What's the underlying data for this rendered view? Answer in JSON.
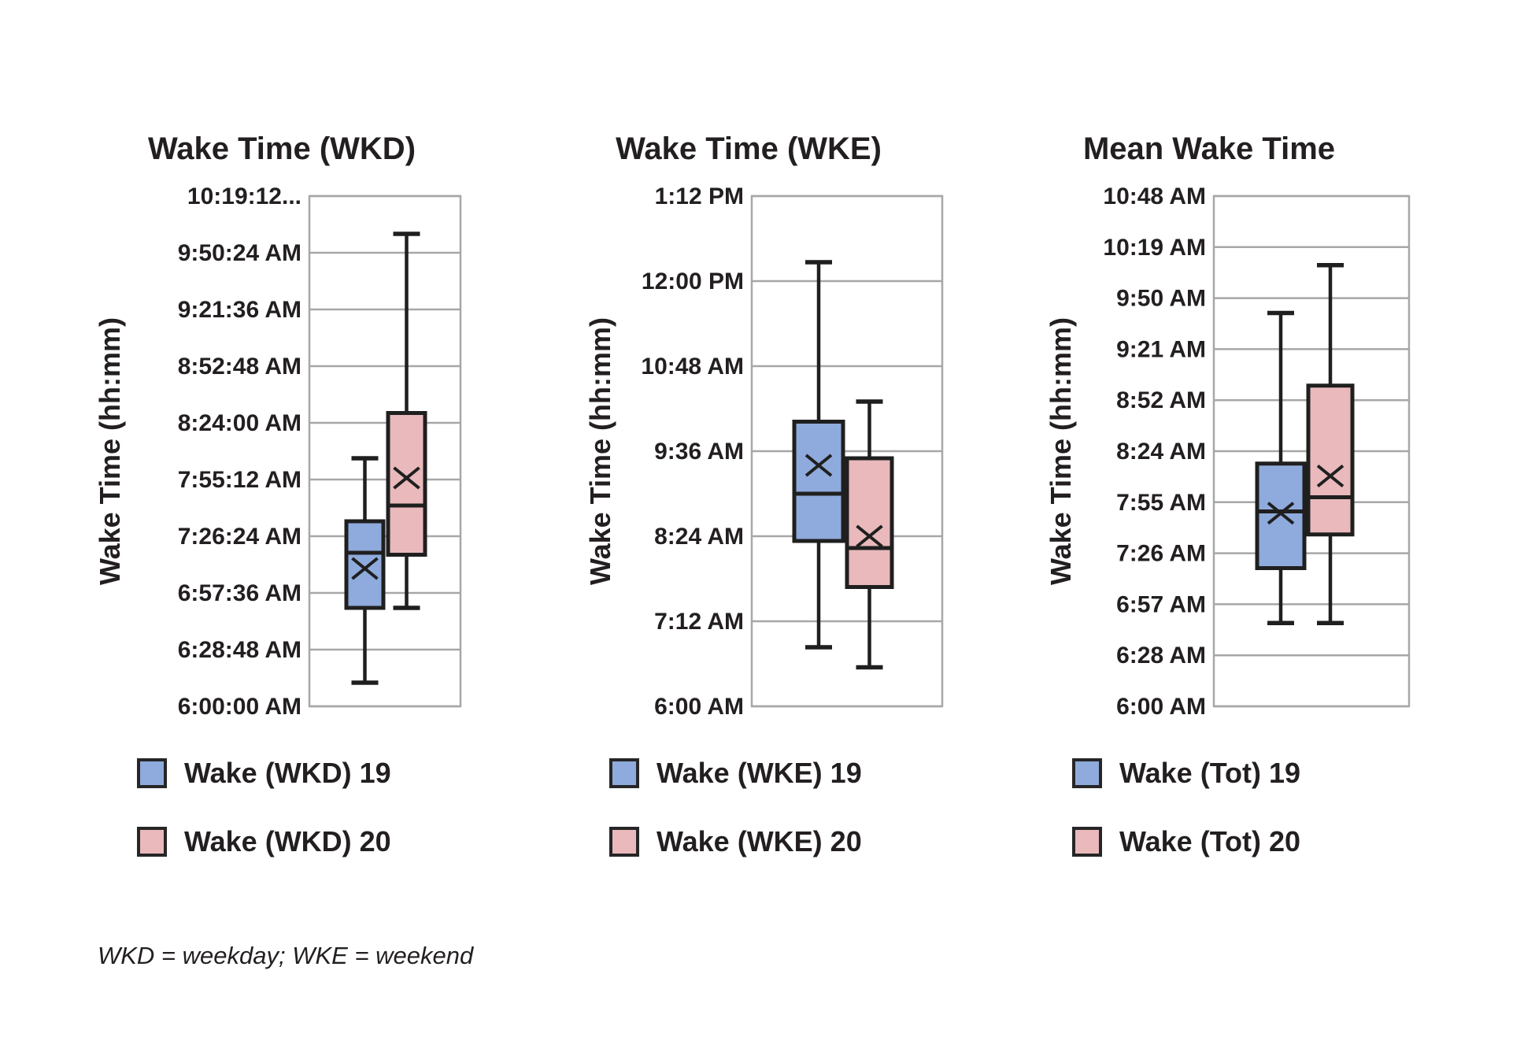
{
  "footnote": "WKD = weekday; WKE = weekend",
  "colors": {
    "series19": "#8FAADC",
    "series20": "#E9B9BC",
    "box_border": "#1F1F1F",
    "gridline": "#A7A7A7",
    "text": "#231F20"
  },
  "chart_data": [
    {
      "type": "boxplot",
      "title": "Wake Time (WKD)",
      "ylabel": "Wake Time (hh:mm)",
      "y_axis": {
        "min_minutes": 360,
        "max_minutes": 619.2,
        "ticks": [
          {
            "label": "10:19:12...",
            "minutes": 619.2
          },
          {
            "label": "9:50:24 AM",
            "minutes": 590.4
          },
          {
            "label": "9:21:36 AM",
            "minutes": 561.6
          },
          {
            "label": "8:52:48 AM",
            "minutes": 532.8
          },
          {
            "label": "8:24:00 AM",
            "minutes": 504
          },
          {
            "label": "7:55:12 AM",
            "minutes": 475.2
          },
          {
            "label": "7:26:24 AM",
            "minutes": 446.4
          },
          {
            "label": "6:57:36 AM",
            "minutes": 417.6
          },
          {
            "label": "6:28:48 AM",
            "minutes": 388.8
          },
          {
            "label": "6:00:00 AM",
            "minutes": 360
          }
        ]
      },
      "series": [
        {
          "name": "Wake (WKD) 19",
          "color_key": "series19",
          "stats": {
            "min": "6:12 AM",
            "q1": "6:50 AM",
            "median": "7:18 AM",
            "mean": "7:10 AM",
            "q3": "7:34 AM",
            "max": "8:06 AM"
          },
          "stats_minutes": {
            "min": 372,
            "q1": 410,
            "median": 438,
            "mean": 430,
            "q3": 454,
            "max": 486
          }
        },
        {
          "name": "Wake (WKD) 20",
          "color_key": "series20",
          "stats": {
            "min": "6:50 AM",
            "q1": "7:17 AM",
            "median": "7:42 AM",
            "mean": "7:56 AM",
            "q3": "8:29 AM",
            "max": "10:00 AM"
          },
          "stats_minutes": {
            "min": 410,
            "q1": 437,
            "median": 462,
            "mean": 476,
            "q3": 509,
            "max": 600
          }
        }
      ]
    },
    {
      "type": "boxplot",
      "title": "Wake Time (WKE)",
      "ylabel": "Wake Time (hh:mm)",
      "y_axis": {
        "min_minutes": 360,
        "max_minutes": 792,
        "ticks": [
          {
            "label": "1:12 PM",
            "minutes": 792
          },
          {
            "label": "12:00 PM",
            "minutes": 720
          },
          {
            "label": "10:48 AM",
            "minutes": 648
          },
          {
            "label": "9:36 AM",
            "minutes": 576
          },
          {
            "label": "8:24 AM",
            "minutes": 504
          },
          {
            "label": "7:12 AM",
            "minutes": 432
          },
          {
            "label": "6:00 AM",
            "minutes": 360
          }
        ]
      },
      "series": [
        {
          "name": "Wake (WKE) 19",
          "color_key": "series19",
          "stats": {
            "min": "6:50 AM",
            "q1": "8:20 AM",
            "median": "9:00 AM",
            "mean": "9:24 AM",
            "q3": "10:01 AM",
            "max": "12:16 PM"
          },
          "stats_minutes": {
            "min": 410,
            "q1": 500,
            "median": 540,
            "mean": 564,
            "q3": 601,
            "max": 736
          }
        },
        {
          "name": "Wake (WKE) 20",
          "color_key": "series20",
          "stats": {
            "min": "6:33 AM",
            "q1": "7:41 AM",
            "median": "8:14 AM",
            "mean": "8:24 AM",
            "q3": "9:30 AM",
            "max": "10:18 AM"
          },
          "stats_minutes": {
            "min": 393,
            "q1": 461,
            "median": 494,
            "mean": 504,
            "q3": 570,
            "max": 618
          }
        }
      ]
    },
    {
      "type": "boxplot",
      "title": "Mean Wake Time",
      "ylabel": "Wake Time (hh:mm)",
      "y_axis": {
        "min_minutes": 360,
        "max_minutes": 648,
        "ticks": [
          {
            "label": "10:48 AM",
            "minutes": 648
          },
          {
            "label": "10:19 AM",
            "minutes": 619.2
          },
          {
            "label": "9:50 AM",
            "minutes": 590.4
          },
          {
            "label": "9:21 AM",
            "minutes": 561.6
          },
          {
            "label": "8:52 AM",
            "minutes": 532.8
          },
          {
            "label": "8:24 AM",
            "minutes": 504
          },
          {
            "label": "7:55 AM",
            "minutes": 475.2
          },
          {
            "label": "7:26 AM",
            "minutes": 446.4
          },
          {
            "label": "6:57 AM",
            "minutes": 417.6
          },
          {
            "label": "6:28 AM",
            "minutes": 388.8
          },
          {
            "label": "6:00 AM",
            "minutes": 360
          }
        ]
      },
      "series": [
        {
          "name": "Wake (Tot) 19",
          "color_key": "series19",
          "stats": {
            "min": "6:47 AM",
            "q1": "7:18 AM",
            "median": "7:50 AM",
            "mean": "7:49 AM",
            "q3": "8:17 AM",
            "max": "9:42 AM"
          },
          "stats_minutes": {
            "min": 407,
            "q1": 438,
            "median": 470,
            "mean": 469,
            "q3": 497,
            "max": 582
          }
        },
        {
          "name": "Wake (Tot) 20",
          "color_key": "series20",
          "stats": {
            "min": "6:47 AM",
            "q1": "7:37 AM",
            "median": "7:58 AM",
            "mean": "8:10 AM",
            "q3": "9:01 AM",
            "max": "10:09 AM"
          },
          "stats_minutes": {
            "min": 407,
            "q1": 457,
            "median": 478,
            "mean": 490,
            "q3": 541,
            "max": 609
          }
        }
      ]
    }
  ]
}
